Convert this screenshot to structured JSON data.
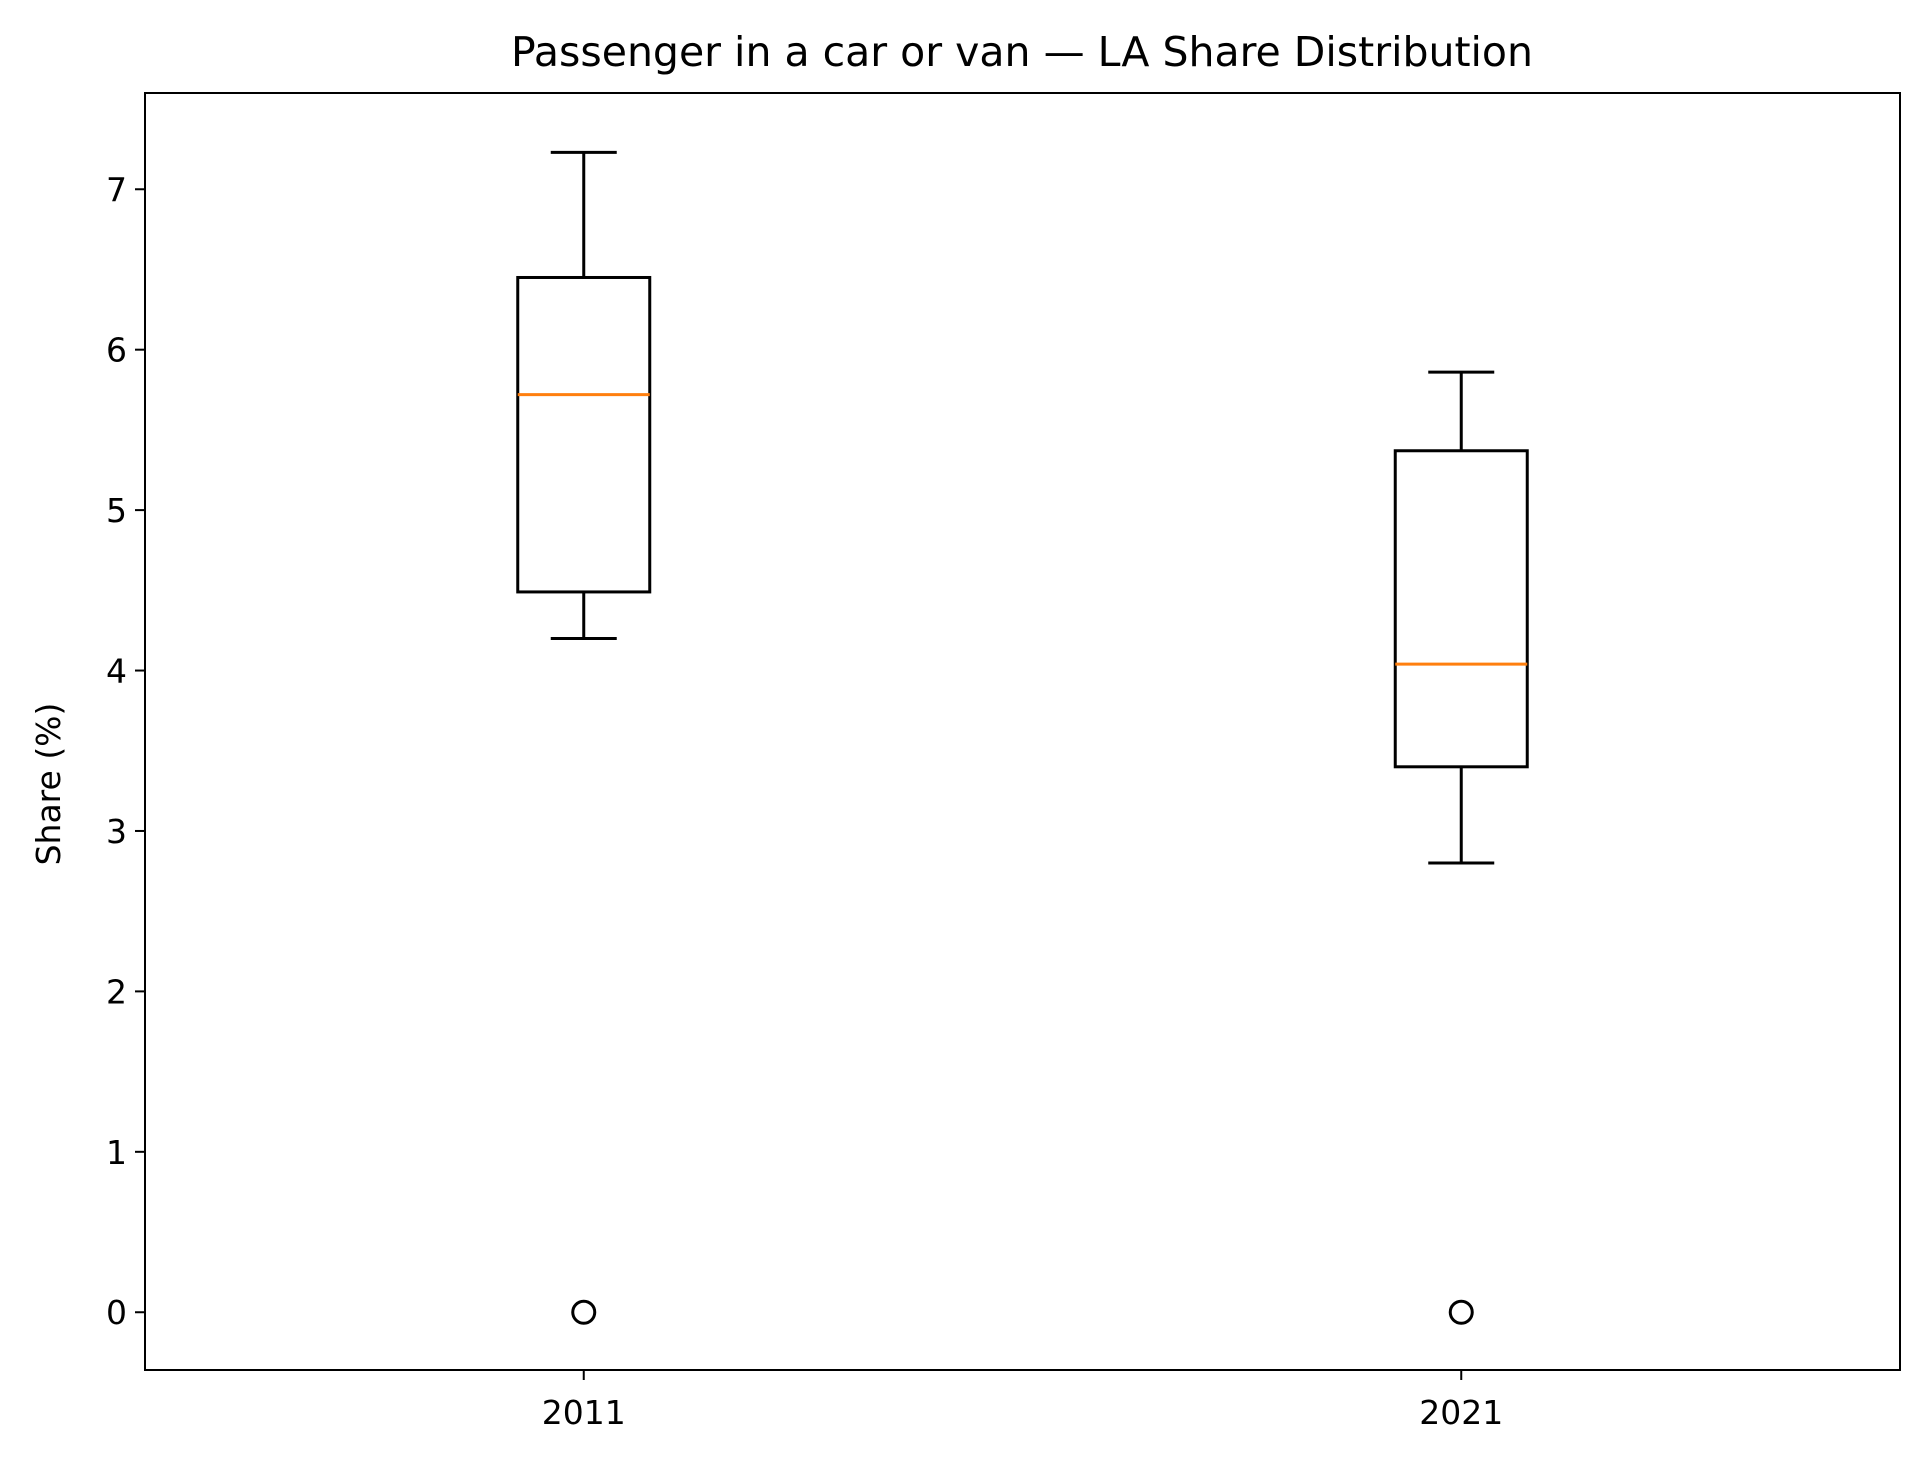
{
  "chart_data": {
    "type": "box",
    "title": "Passenger in a car or van — LA Share Distribution",
    "xlabel": "",
    "ylabel": "Share (%)",
    "categories": [
      "2011",
      "2021"
    ],
    "boxes": [
      {
        "label": "2011",
        "whisker_low": 4.2,
        "q1": 4.49,
        "median": 5.72,
        "q3": 6.45,
        "whisker_high": 7.23,
        "outliers": [
          0
        ]
      },
      {
        "label": "2021",
        "whisker_low": 2.8,
        "q1": 3.4,
        "median": 4.04,
        "q3": 5.37,
        "whisker_high": 5.86,
        "outliers": [
          0
        ]
      }
    ],
    "ylim": [
      -0.36,
      7.6
    ],
    "yticks": [
      0,
      1,
      2,
      3,
      4,
      5,
      6,
      7
    ],
    "grid": false,
    "colors": {
      "box": "#000000",
      "median": "#ff7f0e",
      "outlier": "#000000"
    }
  }
}
